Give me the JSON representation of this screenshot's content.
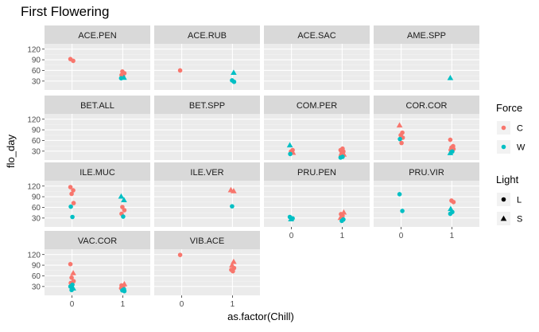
{
  "chart_data": {
    "type": "scatter",
    "title": "First Flowering",
    "xlabel": "as.factor(Chill)",
    "ylabel": "flo_day",
    "x_categories": [
      "0",
      "1"
    ],
    "y_ticks": [
      30,
      60,
      90,
      120
    ],
    "ylim": [
      5,
      135
    ],
    "grid": true,
    "legend_placement": "right",
    "legends": [
      {
        "title": "Force",
        "aesthetic": "color",
        "entries": [
          {
            "label": "C",
            "color": "#F8766D"
          },
          {
            "label": "W",
            "color": "#00BFC4"
          }
        ]
      },
      {
        "title": "Light",
        "aesthetic": "shape",
        "entries": [
          {
            "label": "L",
            "shape": "circle"
          },
          {
            "label": "S",
            "shape": "triangle"
          }
        ]
      }
    ],
    "panels": [
      {
        "name": "ACE.PEN",
        "points": [
          {
            "x": "0",
            "y": 92,
            "force": "C",
            "light": "L"
          },
          {
            "x": "0",
            "y": 87,
            "force": "C",
            "light": "L"
          },
          {
            "x": "1",
            "y": 57,
            "force": "C",
            "light": "L"
          },
          {
            "x": "1",
            "y": 52,
            "force": "C",
            "light": "L"
          },
          {
            "x": "1",
            "y": 47,
            "force": "C",
            "light": "L"
          },
          {
            "x": "1",
            "y": 42,
            "force": "C",
            "light": "L"
          },
          {
            "x": "1",
            "y": 38,
            "force": "W",
            "light": "L"
          },
          {
            "x": "1",
            "y": 40,
            "force": "W",
            "light": "S"
          }
        ]
      },
      {
        "name": "ACE.RUB",
        "points": [
          {
            "x": "0",
            "y": 60,
            "force": "C",
            "light": "L"
          },
          {
            "x": "1",
            "y": 54,
            "force": "W",
            "light": "S"
          },
          {
            "x": "1",
            "y": 32,
            "force": "W",
            "light": "L"
          },
          {
            "x": "1",
            "y": 28,
            "force": "W",
            "light": "L"
          }
        ]
      },
      {
        "name": "ACE.SAC",
        "points": []
      },
      {
        "name": "AME.SPP",
        "points": [
          {
            "x": "1",
            "y": 39,
            "force": "W",
            "light": "S"
          }
        ]
      },
      {
        "name": "BET.ALL",
        "points": []
      },
      {
        "name": "BET.SPP",
        "points": []
      },
      {
        "name": "COM.PER",
        "points": [
          {
            "x": "0",
            "y": 47,
            "force": "W",
            "light": "S"
          },
          {
            "x": "0",
            "y": 33,
            "force": "C",
            "light": "L"
          },
          {
            "x": "0",
            "y": 29,
            "force": "C",
            "light": "L"
          },
          {
            "x": "0",
            "y": 26,
            "force": "C",
            "light": "S"
          },
          {
            "x": "0",
            "y": 22,
            "force": "W",
            "light": "L"
          },
          {
            "x": "1",
            "y": 37,
            "force": "C",
            "light": "L"
          },
          {
            "x": "1",
            "y": 33,
            "force": "C",
            "light": "L"
          },
          {
            "x": "1",
            "y": 29,
            "force": "C",
            "light": "L"
          },
          {
            "x": "1",
            "y": 25,
            "force": "C",
            "light": "L"
          },
          {
            "x": "1",
            "y": 21,
            "force": "C",
            "light": "S"
          },
          {
            "x": "1",
            "y": 18,
            "force": "C",
            "light": "L"
          },
          {
            "x": "1",
            "y": 14,
            "force": "W",
            "light": "L"
          },
          {
            "x": "1",
            "y": 12,
            "force": "W",
            "light": "L"
          }
        ]
      },
      {
        "name": "COR.COR",
        "points": [
          {
            "x": "0",
            "y": 103,
            "force": "C",
            "light": "S"
          },
          {
            "x": "0",
            "y": 82,
            "force": "C",
            "light": "L"
          },
          {
            "x": "0",
            "y": 75,
            "force": "C",
            "light": "L"
          },
          {
            "x": "0",
            "y": 68,
            "force": "C",
            "light": "L"
          },
          {
            "x": "0",
            "y": 64,
            "force": "W",
            "light": "L"
          },
          {
            "x": "0",
            "y": 53,
            "force": "C",
            "light": "L"
          },
          {
            "x": "1",
            "y": 62,
            "force": "C",
            "light": "L"
          },
          {
            "x": "1",
            "y": 44,
            "force": "C",
            "light": "L"
          },
          {
            "x": "1",
            "y": 40,
            "force": "C",
            "light": "L"
          },
          {
            "x": "1",
            "y": 36,
            "force": "C",
            "light": "L"
          },
          {
            "x": "1",
            "y": 33,
            "force": "C",
            "light": "L"
          },
          {
            "x": "1",
            "y": 29,
            "force": "W",
            "light": "L"
          },
          {
            "x": "1",
            "y": 25,
            "force": "W",
            "light": "S"
          }
        ]
      },
      {
        "name": "ILE.MUC",
        "points": [
          {
            "x": "0",
            "y": 117,
            "force": "C",
            "light": "L"
          },
          {
            "x": "0",
            "y": 108,
            "force": "C",
            "light": "L"
          },
          {
            "x": "0",
            "y": 98,
            "force": "C",
            "light": "L"
          },
          {
            "x": "0",
            "y": 72,
            "force": "C",
            "light": "L"
          },
          {
            "x": "0",
            "y": 62,
            "force": "W",
            "light": "L"
          },
          {
            "x": "0",
            "y": 33,
            "force": "W",
            "light": "L"
          },
          {
            "x": "1",
            "y": 91,
            "force": "W",
            "light": "S"
          },
          {
            "x": "1",
            "y": 81,
            "force": "W",
            "light": "S"
          },
          {
            "x": "1",
            "y": 61,
            "force": "C",
            "light": "L"
          },
          {
            "x": "1",
            "y": 52,
            "force": "C",
            "light": "L"
          },
          {
            "x": "1",
            "y": 42,
            "force": "C",
            "light": "L"
          },
          {
            "x": "1",
            "y": 34,
            "force": "W",
            "light": "L"
          }
        ]
      },
      {
        "name": "ILE.VER",
        "points": [
          {
            "x": "1",
            "y": 109,
            "force": "C",
            "light": "S"
          },
          {
            "x": "1",
            "y": 106,
            "force": "C",
            "light": "S"
          },
          {
            "x": "1",
            "y": 63,
            "force": "W",
            "light": "L"
          }
        ]
      },
      {
        "name": "PRU.PEN",
        "points": [
          {
            "x": "0",
            "y": 33,
            "force": "W",
            "light": "L"
          },
          {
            "x": "0",
            "y": 29,
            "force": "W",
            "light": "L"
          },
          {
            "x": "0",
            "y": 27,
            "force": "W",
            "light": "S"
          },
          {
            "x": "1",
            "y": 46,
            "force": "C",
            "light": "S"
          },
          {
            "x": "1",
            "y": 41,
            "force": "C",
            "light": "L"
          },
          {
            "x": "1",
            "y": 36,
            "force": "C",
            "light": "L"
          },
          {
            "x": "1",
            "y": 31,
            "force": "C",
            "light": "S"
          },
          {
            "x": "1",
            "y": 26,
            "force": "W",
            "light": "L"
          },
          {
            "x": "1",
            "y": 22,
            "force": "W",
            "light": "L"
          }
        ]
      },
      {
        "name": "PRU.VIR",
        "points": [
          {
            "x": "0",
            "y": 97,
            "force": "W",
            "light": "L"
          },
          {
            "x": "0",
            "y": 50,
            "force": "W",
            "light": "L"
          },
          {
            "x": "1",
            "y": 79,
            "force": "C",
            "light": "L"
          },
          {
            "x": "1",
            "y": 75,
            "force": "C",
            "light": "L"
          },
          {
            "x": "1",
            "y": 56,
            "force": "W",
            "light": "S"
          },
          {
            "x": "1",
            "y": 47,
            "force": "W",
            "light": "L"
          },
          {
            "x": "1",
            "y": 42,
            "force": "W",
            "light": "L"
          }
        ]
      },
      {
        "name": "VAC.COR",
        "points": [
          {
            "x": "0",
            "y": 93,
            "force": "C",
            "light": "L"
          },
          {
            "x": "0",
            "y": 68,
            "force": "C",
            "light": "S"
          },
          {
            "x": "0",
            "y": 55,
            "force": "C",
            "light": "L"
          },
          {
            "x": "0",
            "y": 45,
            "force": "C",
            "light": "L"
          },
          {
            "x": "0",
            "y": 40,
            "force": "C",
            "light": "L"
          },
          {
            "x": "0",
            "y": 35,
            "force": "W",
            "light": "L"
          },
          {
            "x": "0",
            "y": 30,
            "force": "W",
            "light": "L"
          },
          {
            "x": "0",
            "y": 25,
            "force": "W",
            "light": "S"
          },
          {
            "x": "0",
            "y": 20,
            "force": "W",
            "light": "L"
          },
          {
            "x": "1",
            "y": 37,
            "force": "C",
            "light": "S"
          },
          {
            "x": "1",
            "y": 33,
            "force": "C",
            "light": "L"
          },
          {
            "x": "1",
            "y": 29,
            "force": "C",
            "light": "L"
          },
          {
            "x": "1",
            "y": 25,
            "force": "C",
            "light": "L"
          },
          {
            "x": "1",
            "y": 22,
            "force": "W",
            "light": "L"
          },
          {
            "x": "1",
            "y": 19,
            "force": "W",
            "light": "L"
          },
          {
            "x": "1",
            "y": 17,
            "force": "W",
            "light": "L"
          }
        ]
      },
      {
        "name": "VIB.ACE",
        "points": [
          {
            "x": "0",
            "y": 119,
            "force": "C",
            "light": "L"
          },
          {
            "x": "1",
            "y": 100,
            "force": "C",
            "light": "S"
          },
          {
            "x": "1",
            "y": 90,
            "force": "C",
            "light": "S"
          },
          {
            "x": "1",
            "y": 82,
            "force": "C",
            "light": "L"
          },
          {
            "x": "1",
            "y": 77,
            "force": "C",
            "light": "L"
          },
          {
            "x": "1",
            "y": 73,
            "force": "C",
            "light": "L"
          }
        ]
      }
    ]
  }
}
